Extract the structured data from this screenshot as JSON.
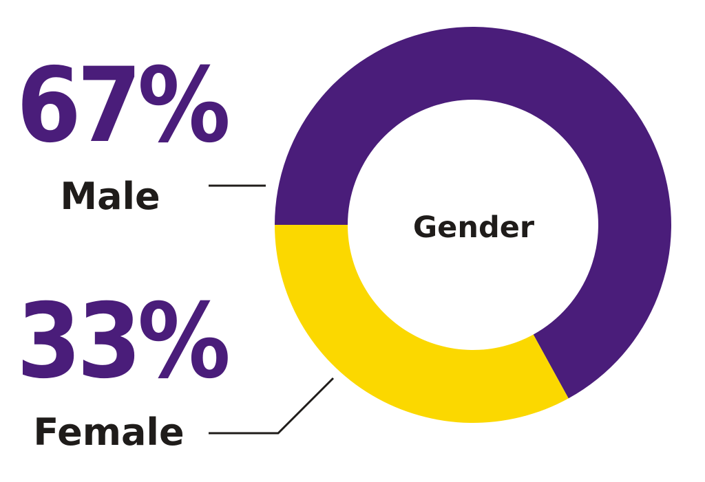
{
  "chart_data": {
    "type": "pie",
    "style": "donut",
    "center_label": "Gender",
    "slices": [
      {
        "label": "Male",
        "value": 67,
        "value_label": "67%",
        "color": "#4a1d7a"
      },
      {
        "label": "Female",
        "value": 33,
        "value_label": "33%",
        "color": "#fbd800"
      }
    ],
    "value_label_color": "#4a1d7a",
    "category_label_color": "#1f1c1a",
    "background": "#ffffff"
  }
}
